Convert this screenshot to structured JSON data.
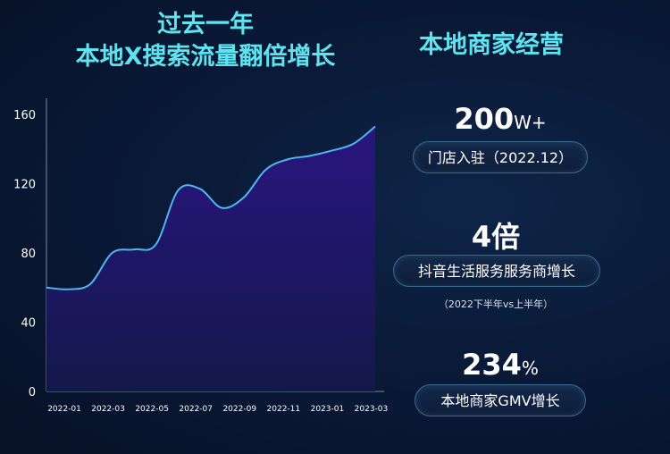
{
  "header": {
    "left_title_line1": "过去一年",
    "left_title_line2": "本地X搜索流量翻倍增长",
    "right_title": "本地商家经营"
  },
  "chart_data": {
    "type": "area",
    "x": [
      "2022-01",
      "2022-02",
      "2022-03",
      "2022-04",
      "2022-05",
      "2022-06",
      "2022-07",
      "2022-08",
      "2022-09",
      "2022-10",
      "2022-11",
      "2022-12",
      "2023-01",
      "2023-02",
      "2023-03",
      "2023-04"
    ],
    "values": [
      60,
      59,
      62,
      80,
      82,
      85,
      116,
      117,
      106,
      112,
      128,
      134,
      136,
      139,
      143,
      153
    ],
    "xticks": [
      "2022-01",
      "2022-03",
      "2022-05",
      "2022-07",
      "2022-09",
      "2022-11",
      "2023-01",
      "2023-03"
    ],
    "yticks": [
      0,
      40,
      80,
      120,
      160
    ],
    "ylim": [
      0,
      160
    ],
    "grid": false,
    "line_color": "#4fb6f0",
    "fill_top": "#2a1580",
    "fill_bottom": "#13184a"
  },
  "stats": [
    {
      "value": "200",
      "unit": "W+",
      "label": "门店入驻（2022.12）"
    },
    {
      "value": "4倍",
      "label": "抖音生活服务服务商增长",
      "note": "（2022下半年vs上半年）"
    },
    {
      "value": "234",
      "unit": "%",
      "label": "本地商家GMV增长"
    }
  ]
}
